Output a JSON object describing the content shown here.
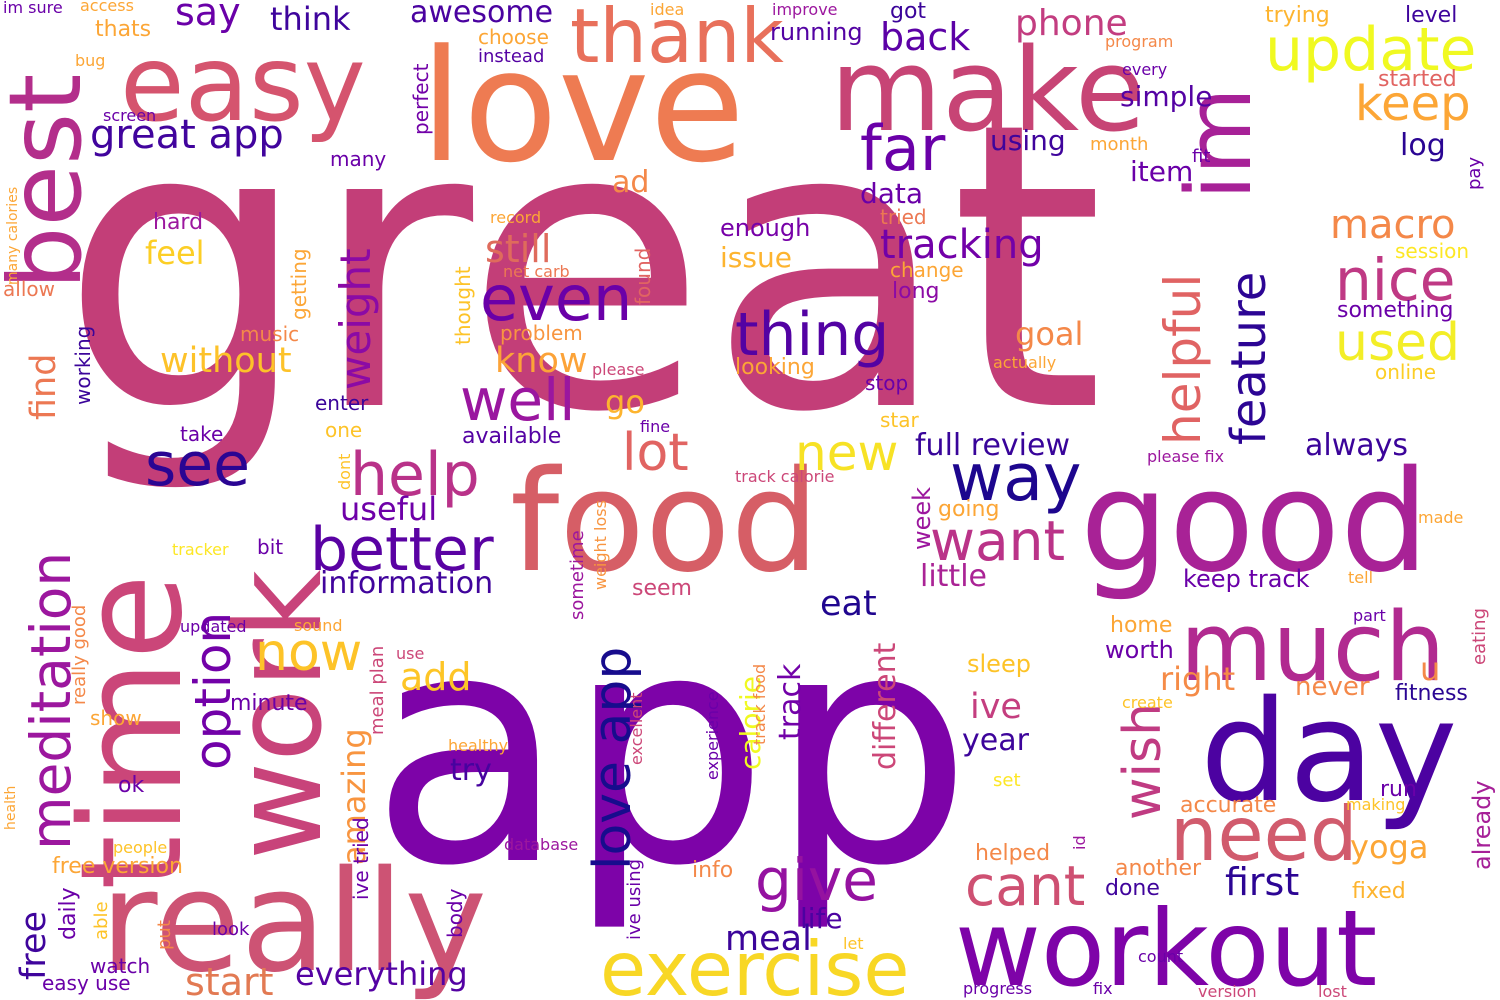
{
  "words": [
    {
      "text": "great",
      "color": "#c33e78"
    },
    {
      "text": "app",
      "color": "#7d03a8"
    },
    {
      "text": "love",
      "color": "#ee7b52"
    },
    {
      "text": "good",
      "color": "#a82296"
    },
    {
      "text": "food",
      "color": "#d65e66"
    },
    {
      "text": "time",
      "color": "#cb4679"
    },
    {
      "text": "really",
      "color": "#cd5374"
    },
    {
      "text": "work",
      "color": "#c8437a"
    },
    {
      "text": "day",
      "color": "#4c02a1"
    },
    {
      "text": "make",
      "color": "#c74475"
    },
    {
      "text": "easy",
      "color": "#d5546e"
    },
    {
      "text": "best",
      "color": "#b32e8b"
    },
    {
      "text": "workout",
      "color": "#7e03a8"
    },
    {
      "text": "much",
      "color": "#b12a90"
    },
    {
      "text": "im",
      "color": "#a72197"
    },
    {
      "text": "thank",
      "color": "#e8705b"
    },
    {
      "text": "exercise",
      "color": "#f8d725"
    },
    {
      "text": "update",
      "color": "#f0f921"
    },
    {
      "text": "need",
      "color": "#d15b6d"
    },
    {
      "text": "meditation",
      "color": "#9c179e"
    },
    {
      "text": "better",
      "color": "#5a02a3"
    },
    {
      "text": "way",
      "color": "#1d068e"
    },
    {
      "text": "see",
      "color": "#2a0593"
    },
    {
      "text": "help",
      "color": "#b93289"
    },
    {
      "text": "love app",
      "color": "#170c8d"
    },
    {
      "text": "even",
      "color": "#6a00a8"
    },
    {
      "text": "thing",
      "color": "#5302a3"
    },
    {
      "text": "well",
      "color": "#9a169f"
    },
    {
      "text": "want",
      "color": "#ba3388"
    },
    {
      "text": "nice",
      "color": "#bf3984"
    },
    {
      "text": "give",
      "color": "#9512a0"
    },
    {
      "text": "wish",
      "color": "#c03b82"
    },
    {
      "text": "cant",
      "color": "#ce5072"
    },
    {
      "text": "helpful",
      "color": "#e06363"
    },
    {
      "text": "feature",
      "color": "#2c0594"
    },
    {
      "text": "used",
      "color": "#f3ee27"
    },
    {
      "text": "far",
      "color": "#6a00a8"
    },
    {
      "text": "new",
      "color": "#f7e225"
    },
    {
      "text": "lot",
      "color": "#e16462"
    },
    {
      "text": "option",
      "color": "#7201a8"
    },
    {
      "text": "now",
      "color": "#fdc328"
    },
    {
      "text": "weight",
      "color": "#8b0aa5"
    },
    {
      "text": "keep",
      "color": "#fca636"
    },
    {
      "text": "great app",
      "color": "#41049d"
    },
    {
      "text": "tracking",
      "color": "#7201a8"
    },
    {
      "text": "macro",
      "color": "#f48849"
    },
    {
      "text": "say",
      "color": "#6a00a8"
    },
    {
      "text": "back",
      "color": "#5c01a6"
    },
    {
      "text": "phone",
      "color": "#c33d80"
    },
    {
      "text": "think",
      "color": "#3e049c"
    },
    {
      "text": "awesome",
      "color": "#4a02a0"
    },
    {
      "text": "start",
      "color": "#e27a53"
    },
    {
      "text": "everything",
      "color": "#5402a3"
    },
    {
      "text": "first",
      "color": "#2c0594"
    },
    {
      "text": "meal",
      "color": "#3b049a"
    },
    {
      "text": "free",
      "color": "#3f049c"
    },
    {
      "text": "still",
      "color": "#df6b5c"
    },
    {
      "text": "know",
      "color": "#fca338"
    },
    {
      "text": "find",
      "color": "#ec7853"
    },
    {
      "text": "without",
      "color": "#fdc229"
    },
    {
      "text": "amazing",
      "color": "#f89540"
    },
    {
      "text": "information",
      "color": "#40049c"
    },
    {
      "text": "useful",
      "color": "#6e00a8"
    },
    {
      "text": "full review",
      "color": "#38049a"
    },
    {
      "text": "always",
      "color": "#3b049a"
    },
    {
      "text": "add",
      "color": "#fdc526"
    },
    {
      "text": "eat",
      "color": "#20068f"
    },
    {
      "text": "calorie",
      "color": "#f0f921"
    },
    {
      "text": "track",
      "color": "#7201a8"
    },
    {
      "text": "ive",
      "color": "#c43e7f"
    },
    {
      "text": "year",
      "color": "#3d049b"
    },
    {
      "text": "right",
      "color": "#f58b47"
    },
    {
      "text": "u",
      "color": "#f48849"
    },
    {
      "text": "different",
      "color": "#cc4778"
    },
    {
      "text": "little",
      "color": "#aa2395"
    },
    {
      "text": "try",
      "color": "#47039f"
    },
    {
      "text": "life",
      "color": "#4c02a1"
    },
    {
      "text": "yoga",
      "color": "#fca636"
    },
    {
      "text": "go",
      "color": "#fdb42f"
    },
    {
      "text": "feel",
      "color": "#fcce25"
    },
    {
      "text": "goal",
      "color": "#f48849"
    },
    {
      "text": "data",
      "color": "#6a00a8"
    },
    {
      "text": "simple",
      "color": "#5402a3"
    },
    {
      "text": "using",
      "color": "#3f049c"
    },
    {
      "text": "item",
      "color": "#6a00a8"
    },
    {
      "text": "log",
      "color": "#2a0593"
    },
    {
      "text": "issue",
      "color": "#fdb42f"
    },
    {
      "text": "enough",
      "color": "#7701a8"
    },
    {
      "text": "ad",
      "color": "#f48849"
    },
    {
      "text": "running",
      "color": "#5302a3"
    },
    {
      "text": "got",
      "color": "#3b049a"
    },
    {
      "text": "level",
      "color": "#3e049c"
    },
    {
      "text": "trying",
      "color": "#fdb42f"
    },
    {
      "text": "started",
      "color": "#e16462"
    },
    {
      "text": "keep track",
      "color": "#6a00a8"
    },
    {
      "text": "never",
      "color": "#f48849"
    },
    {
      "text": "fitness",
      "color": "#2a0593"
    },
    {
      "text": "already",
      "color": "#a62098"
    },
    {
      "text": "worth",
      "color": "#6a00a8"
    },
    {
      "text": "home",
      "color": "#fca636"
    },
    {
      "text": "week",
      "color": "#9c179e"
    },
    {
      "text": "going",
      "color": "#fca636"
    },
    {
      "text": "sleep",
      "color": "#fdc328"
    },
    {
      "text": "accurate",
      "color": "#f48849"
    },
    {
      "text": "helped",
      "color": "#f48849"
    },
    {
      "text": "another",
      "color": "#f48849"
    },
    {
      "text": "done",
      "color": "#40049c"
    },
    {
      "text": "run",
      "color": "#6a00a8"
    },
    {
      "text": "fixed",
      "color": "#fdb42f"
    },
    {
      "text": "something",
      "color": "#6a00a8"
    },
    {
      "text": "online",
      "color": "#fcce25"
    },
    {
      "text": "session",
      "color": "#fde725"
    },
    {
      "text": "long",
      "color": "#8b0aa5"
    },
    {
      "text": "change",
      "color": "#fca636"
    },
    {
      "text": "tried",
      "color": "#ec7853"
    },
    {
      "text": "stop",
      "color": "#6a00a8"
    },
    {
      "text": "looking",
      "color": "#fca636"
    },
    {
      "text": "star",
      "color": "#fdc328"
    },
    {
      "text": "available",
      "color": "#5402a3"
    },
    {
      "text": "enter",
      "color": "#3b049a"
    },
    {
      "text": "one",
      "color": "#fdc328"
    },
    {
      "text": "take",
      "color": "#6a00a8"
    },
    {
      "text": "music",
      "color": "#f48849"
    },
    {
      "text": "problem",
      "color": "#f89540"
    },
    {
      "text": "working",
      "color": "#3b049a"
    },
    {
      "text": "getting",
      "color": "#fca636"
    },
    {
      "text": "thought",
      "color": "#fdc328"
    },
    {
      "text": "found",
      "color": "#e16462"
    },
    {
      "text": "hard",
      "color": "#9c179e"
    },
    {
      "text": "many",
      "color": "#6a00a8"
    },
    {
      "text": "perfect",
      "color": "#7201a8"
    },
    {
      "text": "choose",
      "color": "#fca636"
    },
    {
      "text": "instead",
      "color": "#5402a3"
    },
    {
      "text": "idea",
      "color": "#fca636"
    },
    {
      "text": "improve",
      "color": "#9c179e"
    },
    {
      "text": "program",
      "color": "#f48849"
    },
    {
      "text": "every",
      "color": "#6a00a8"
    },
    {
      "text": "month",
      "color": "#fca636"
    },
    {
      "text": "fit",
      "color": "#6a00a8"
    },
    {
      "text": "pay",
      "color": "#6a00a8"
    },
    {
      "text": "actually",
      "color": "#fca636"
    },
    {
      "text": "please",
      "color": "#cc4778"
    },
    {
      "text": "fine",
      "color": "#6a00a8"
    },
    {
      "text": "please fix",
      "color": "#9c179e"
    },
    {
      "text": "track calorie",
      "color": "#cc4778"
    },
    {
      "text": "dont",
      "color": "#fdc328"
    },
    {
      "text": "weight loss",
      "color": "#f89540"
    },
    {
      "text": "sometime",
      "color": "#9c179e"
    },
    {
      "text": "seem",
      "color": "#cc4778"
    },
    {
      "text": "made",
      "color": "#fca636"
    },
    {
      "text": "tell",
      "color": "#fca636"
    },
    {
      "text": "eating",
      "color": "#cc4778"
    },
    {
      "text": "part",
      "color": "#6a00a8"
    },
    {
      "text": "create",
      "color": "#fdc328"
    },
    {
      "text": "making",
      "color": "#fdc328"
    },
    {
      "text": "id",
      "color": "#9c179e"
    },
    {
      "text": "experience",
      "color": "#6a00a8"
    },
    {
      "text": "track food",
      "color": "#f48849"
    },
    {
      "text": "excellent",
      "color": "#cc4778"
    },
    {
      "text": "ive using",
      "color": "#6a00a8"
    },
    {
      "text": "database",
      "color": "#9c179e"
    },
    {
      "text": "info",
      "color": "#f48849"
    },
    {
      "text": "count",
      "color": "#6a00a8"
    },
    {
      "text": "progress",
      "color": "#6a00a8"
    },
    {
      "text": "fix",
      "color": "#6a00a8"
    },
    {
      "text": "version",
      "color": "#cc4778"
    },
    {
      "text": "lost",
      "color": "#cc4778"
    },
    {
      "text": "let",
      "color": "#fdc328"
    },
    {
      "text": "healthy",
      "color": "#fca636"
    },
    {
      "text": "set",
      "color": "#fde725"
    },
    {
      "text": "use",
      "color": "#cc4778"
    },
    {
      "text": "meal plan",
      "color": "#cc4778"
    },
    {
      "text": "ive tried",
      "color": "#6a00a8"
    },
    {
      "text": "body",
      "color": "#6a00a8"
    },
    {
      "text": "look",
      "color": "#6a00a8"
    },
    {
      "text": "put",
      "color": "#f48849"
    },
    {
      "text": "able",
      "color": "#fdc328"
    },
    {
      "text": "watch",
      "color": "#6a00a8"
    },
    {
      "text": "easy use",
      "color": "#6a00a8"
    },
    {
      "text": "daily",
      "color": "#6a00a8"
    },
    {
      "text": "people",
      "color": "#fdc328"
    },
    {
      "text": "free version",
      "color": "#fca636"
    },
    {
      "text": "bit",
      "color": "#6a00a8"
    },
    {
      "text": "tracker",
      "color": "#fde725"
    },
    {
      "text": "minute",
      "color": "#6a00a8"
    },
    {
      "text": "updated",
      "color": "#6a00a8"
    },
    {
      "text": "sound",
      "color": "#fca636"
    },
    {
      "text": "show",
      "color": "#fca636"
    },
    {
      "text": "ok",
      "color": "#6a00a8"
    },
    {
      "text": "health",
      "color": "#fca636"
    },
    {
      "text": "really good",
      "color": "#f48849"
    },
    {
      "text": "allow",
      "color": "#ec7853"
    },
    {
      "text": "many calories",
      "color": "#fca636"
    },
    {
      "text": "screen",
      "color": "#6a00a8"
    },
    {
      "text": "bug",
      "color": "#fca636"
    },
    {
      "text": "thats",
      "color": "#fca636"
    },
    {
      "text": "access",
      "color": "#fca636"
    },
    {
      "text": "im sure",
      "color": "#6a00a8"
    },
    {
      "text": "net carb",
      "color": "#ec7853"
    },
    {
      "text": "record",
      "color": "#fca636"
    }
  ]
}
